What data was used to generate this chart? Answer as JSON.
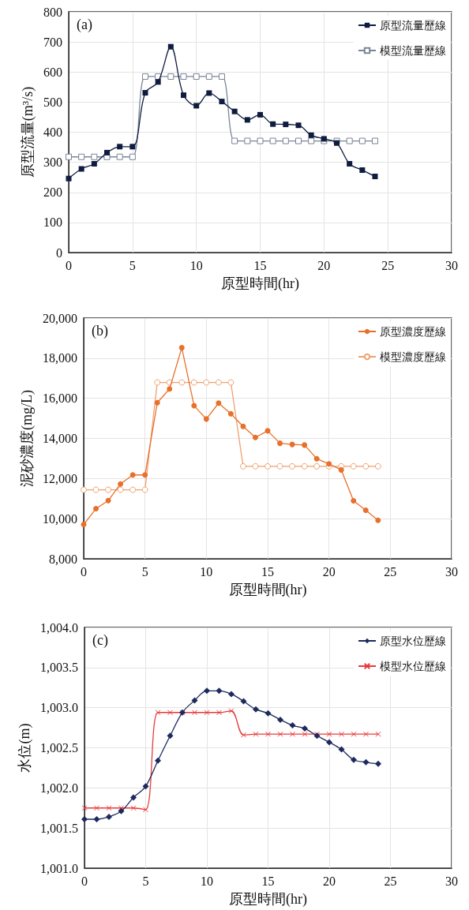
{
  "chart_data": [
    {
      "type": "line",
      "annotations": [
        "(a)"
      ],
      "xlabel": "原型時間(hr)",
      "ylabel": "原型流量(m³/s)",
      "x": [
        0,
        1,
        2,
        3,
        4,
        5,
        6,
        7,
        8,
        9,
        10,
        11,
        12,
        13,
        14,
        15,
        16,
        17,
        18,
        19,
        20,
        21,
        22,
        23,
        24
      ],
      "xlim": [
        0,
        30
      ],
      "xticks": [
        0,
        5,
        10,
        15,
        20,
        25,
        30
      ],
      "ylim": [
        0,
        800
      ],
      "yticks": [
        0,
        100,
        200,
        300,
        400,
        500,
        600,
        700,
        800
      ],
      "grid": true,
      "legend": "top right",
      "series": [
        {
          "name": "原型流量歷線",
          "color": "#0f1c3f",
          "marker": "square",
          "values": [
            246,
            278,
            295,
            332,
            352,
            352,
            531,
            567,
            684,
            523,
            488,
            530,
            502,
            469,
            441,
            458,
            427,
            426,
            423,
            390,
            378,
            364,
            295,
            274,
            253
          ]
        },
        {
          "name": "模型流量歷線",
          "color": "#7a8498",
          "marker": "square",
          "values": [
            318,
            318,
            318,
            318,
            318,
            318,
            585,
            585,
            585,
            585,
            585,
            585,
            585,
            371,
            371,
            371,
            371,
            371,
            371,
            371,
            371,
            371,
            371,
            371,
            371
          ]
        }
      ]
    },
    {
      "type": "line",
      "annotations": [
        "(b)"
      ],
      "xlabel": "原型時間(hr)",
      "ylabel": "泥砂濃度(mg/L)",
      "x": [
        0,
        1,
        2,
        3,
        4,
        5,
        6,
        7,
        8,
        9,
        10,
        11,
        12,
        13,
        14,
        15,
        16,
        17,
        18,
        19,
        20,
        21,
        22,
        23,
        24
      ],
      "xlim": [
        0,
        30
      ],
      "xticks": [
        0,
        5,
        10,
        15,
        20,
        25,
        30
      ],
      "ylim": [
        8000,
        20000
      ],
      "yticks": [
        {
          "value": 8000,
          "label": "8,000"
        },
        {
          "value": 10000,
          "label": "10,000"
        },
        {
          "value": 12000,
          "label": "12,000"
        },
        {
          "value": 14000,
          "label": "14,000"
        },
        {
          "value": 16000,
          "label": "16,000"
        },
        {
          "value": 18000,
          "label": "18,000"
        },
        {
          "value": 20000,
          "label": "20,000"
        }
      ],
      "grid": true,
      "legend": "top right",
      "series": [
        {
          "name": "原型濃度歷線",
          "color": "#e8702a",
          "marker": "circle",
          "values": [
            9710,
            10500,
            10900,
            11730,
            12180,
            12180,
            15780,
            16470,
            18520,
            15630,
            14970,
            15760,
            15230,
            14600,
            14050,
            14380,
            13760,
            13700,
            13670,
            12990,
            12730,
            12430,
            10890,
            10420,
            9920
          ]
        },
        {
          "name": "模型濃度歷線",
          "color": "#f0a070",
          "marker": "circle",
          "values": [
            11440,
            11440,
            11440,
            11440,
            11440,
            11440,
            16790,
            16790,
            16790,
            16790,
            16790,
            16790,
            16790,
            12610,
            12610,
            12610,
            12610,
            12610,
            12610,
            12610,
            12610,
            12610,
            12610,
            12610,
            12610
          ]
        }
      ]
    },
    {
      "type": "line",
      "annotations": [
        "(c)"
      ],
      "xlabel": "原型時間(hr)",
      "ylabel": "水位(m)",
      "x": [
        0,
        1,
        2,
        3,
        4,
        5,
        6,
        7,
        8,
        9,
        10,
        11,
        12,
        13,
        14,
        15,
        16,
        17,
        18,
        19,
        20,
        21,
        22,
        23,
        24
      ],
      "xlim": [
        0,
        30
      ],
      "xticks": [
        0,
        5,
        10,
        15,
        20,
        25,
        30
      ],
      "ylim": [
        1001.0,
        1004.0
      ],
      "yticks": [
        {
          "value": 1001.0,
          "label": "1,001.0"
        },
        {
          "value": 1001.5,
          "label": "1,001.5"
        },
        {
          "value": 1002.0,
          "label": "1,002.0"
        },
        {
          "value": 1002.5,
          "label": "1,002.5"
        },
        {
          "value": 1003.0,
          "label": "1,003.0"
        },
        {
          "value": 1003.5,
          "label": "1,003.5"
        },
        {
          "value": 1004.0,
          "label": "1,004.0"
        }
      ],
      "grid": true,
      "legend": "top right",
      "series": [
        {
          "name": "原型水位歷線",
          "color": "#1c2a5c",
          "marker": "diamond",
          "values": [
            1001.61,
            1001.61,
            1001.64,
            1001.71,
            1001.88,
            1002.02,
            1002.34,
            1002.65,
            1002.94,
            1003.09,
            1003.21,
            1003.21,
            1003.17,
            1003.08,
            1002.98,
            1002.93,
            1002.85,
            1002.78,
            1002.74,
            1002.65,
            1002.57,
            1002.48,
            1002.35,
            1002.32,
            1002.3
          ]
        },
        {
          "name": "模型水位歷線",
          "color": "#e83a3a",
          "marker": "cross",
          "values": [
            1001.75,
            1001.75,
            1001.75,
            1001.75,
            1001.75,
            1001.73,
            1002.94,
            1002.94,
            1002.94,
            1002.94,
            1002.94,
            1002.94,
            1002.96,
            1002.66,
            1002.67,
            1002.67,
            1002.67,
            1002.67,
            1002.67,
            1002.67,
            1002.67,
            1002.67,
            1002.67,
            1002.67,
            1002.67
          ]
        }
      ]
    }
  ]
}
